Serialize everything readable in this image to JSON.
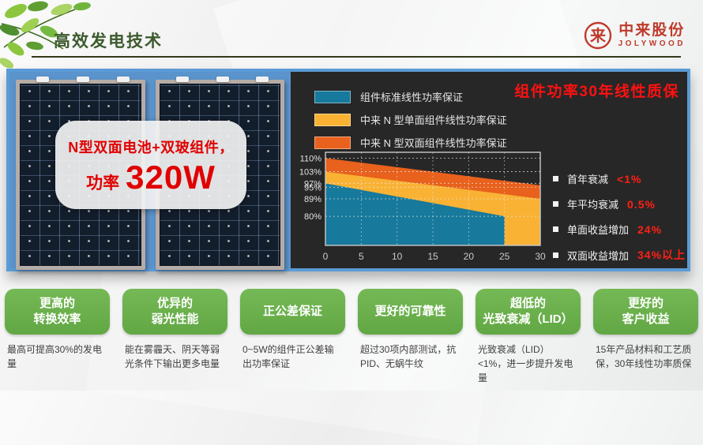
{
  "header": {
    "title": "高效发电技术"
  },
  "logo": {
    "company": "中来股份",
    "brand": "JOLYWOOD",
    "color": "#bf3a2b"
  },
  "panel_overlay": {
    "line1": "N型双面电池+双玻组件，",
    "power_label": "功率",
    "power_value": "320W",
    "accent_color": "#e10000"
  },
  "chart_panel": {
    "title": "组件功率30年线性质保",
    "benefits": [
      {
        "label": "首年衰减",
        "value": "<1%"
      },
      {
        "label": "年平均衰减",
        "value": "0.5%"
      },
      {
        "label": "单面收益增加",
        "value": "24%"
      },
      {
        "label": "双面收益增加",
        "value": "34%以上"
      }
    ]
  },
  "chart_data": {
    "type": "area",
    "title": "组件功率30年线性质保",
    "xlabel": "",
    "ylabel": "",
    "xlim": [
      0,
      30
    ],
    "ylim": [
      65,
      113
    ],
    "x_ticks": [
      0,
      5,
      10,
      15,
      20,
      25,
      30
    ],
    "y_ticks": [
      110,
      103,
      97,
      95,
      89,
      80
    ],
    "y_tick_suffix": "%",
    "grid": true,
    "legend_position": "top-left",
    "series": [
      {
        "name": "组件标准线性功率保证",
        "color": "#17799c",
        "points": [
          [
            0,
            97
          ],
          [
            25,
            80
          ]
        ]
      },
      {
        "name": "中来 N 型单面组件线性功率保证",
        "color": "#f9b234",
        "points": [
          [
            0,
            103
          ],
          [
            30,
            89
          ]
        ]
      },
      {
        "name": "中来 N 型双面组件线性功率保证",
        "color": "#e8611d",
        "points": [
          [
            0,
            110
          ],
          [
            30,
            96
          ]
        ]
      }
    ]
  },
  "features": [
    {
      "title1": "更高的",
      "title2": "转换效率",
      "desc": "最高可提高30%的发电量"
    },
    {
      "title1": "优异的",
      "title2": "弱光性能",
      "desc": "能在雾霾天、阴天等弱光条件下输出更多电量"
    },
    {
      "title1": "正公差保证",
      "desc": "0~5W的组件正公差输出功率保证"
    },
    {
      "title1": "更好的可靠性",
      "desc": "超过30项内部测试，抗PID、无蜗牛纹"
    },
    {
      "title1": "超低的",
      "title2": "光致衰减（LID）",
      "desc": "光致衰减（LID）<1%，进一步提升发电量"
    },
    {
      "title1": "更好的",
      "title2": "客户收益",
      "desc": "15年产品材料和工艺质保，30年线性功率质保"
    }
  ],
  "colors": {
    "band_border": "#5b9bd5",
    "dark_panel": "#272727",
    "badge_green": "#6ab04c",
    "title_green": "#3c5a2e"
  }
}
